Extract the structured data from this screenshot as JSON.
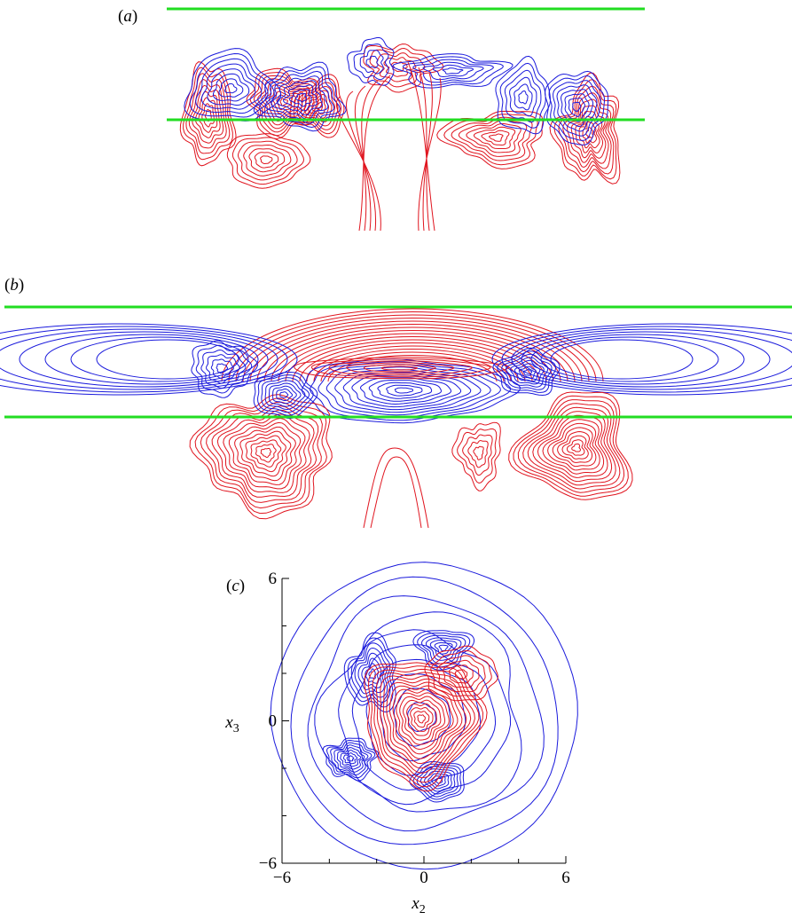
{
  "panels": [
    {
      "letter": "a"
    },
    {
      "letter": "b"
    },
    {
      "letter": "c",
      "xlim": [
        -6,
        6
      ],
      "ylim": [
        -6,
        6
      ],
      "xticks": [
        {
          "value": -6,
          "label": "−6"
        },
        0,
        6
      ],
      "xminor": [
        -4,
        -2,
        2,
        4
      ],
      "yticks": [
        6,
        0,
        {
          "value": -6,
          "label": "−6"
        }
      ],
      "yminor": [
        -4,
        -2,
        2,
        4
      ],
      "xlabel": {
        "base": "x",
        "sub": "2"
      },
      "ylabel": {
        "base": "x",
        "sub": "3"
      }
    }
  ]
}
